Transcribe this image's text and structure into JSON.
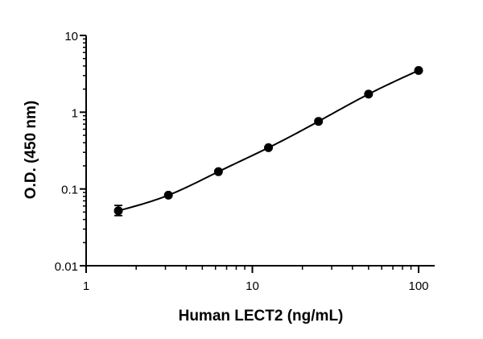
{
  "chart_data": {
    "type": "scatter",
    "xlabel": "Human LECT2 (ng/mL)",
    "ylabel": "O.D. (450 nm)",
    "x_scale": "log",
    "y_scale": "log",
    "xlim": [
      1,
      100
    ],
    "ylim": [
      0.01,
      10
    ],
    "x_ticks": [
      {
        "value": 1,
        "label": "1"
      },
      {
        "value": 10,
        "label": "10"
      },
      {
        "value": 100,
        "label": "100"
      }
    ],
    "y_ticks": [
      {
        "value": 0.01,
        "label": "0.01"
      },
      {
        "value": 0.1,
        "label": "0.1"
      },
      {
        "value": 1,
        "label": "1"
      },
      {
        "value": 10,
        "label": "10"
      }
    ],
    "grid": false,
    "legend": "none",
    "series": [
      {
        "points": [
          {
            "x": 1.5625,
            "y": 0.052,
            "err_low": 0.045,
            "err_high": 0.061
          },
          {
            "x": 3.125,
            "y": 0.083
          },
          {
            "x": 6.25,
            "y": 0.168
          },
          {
            "x": 12.5,
            "y": 0.345
          },
          {
            "x": 25,
            "y": 0.76
          },
          {
            "x": 50,
            "y": 1.72
          },
          {
            "x": 100,
            "y": 3.5
          }
        ]
      }
    ],
    "colors": {
      "marker": "#000000",
      "line": "#000000",
      "axis": "#000000"
    }
  }
}
